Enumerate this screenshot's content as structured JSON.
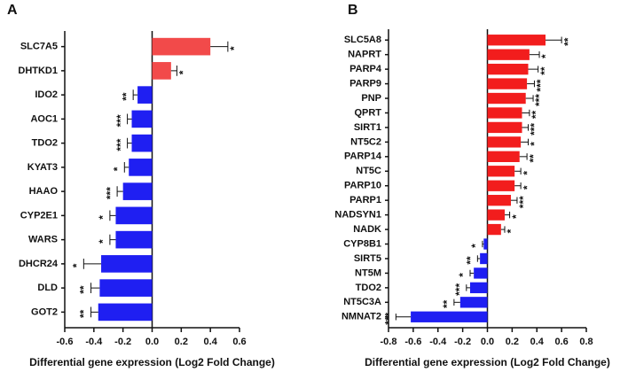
{
  "chart_data": [
    {
      "type": "hbar",
      "panel": "A",
      "categories": [
        "SLC7A5",
        "DHTKD1",
        "IDO2",
        "AOC1",
        "TDO2",
        "KYAT3",
        "HAAO",
        "CYP2E1",
        "WARS",
        "DHCR24",
        "DLD",
        "GOT2"
      ],
      "values": [
        0.4,
        0.13,
        -0.1,
        -0.14,
        -0.14,
        -0.16,
        -0.2,
        -0.25,
        -0.25,
        -0.35,
        -0.36,
        -0.37
      ],
      "errors": [
        0.12,
        0.04,
        0.03,
        0.03,
        0.03,
        0.03,
        0.04,
        0.04,
        0.04,
        0.12,
        0.06,
        0.05
      ],
      "annotations": [
        "*",
        "*",
        "**",
        "***",
        "***",
        "*",
        "***",
        "*",
        "*",
        "*",
        "**",
        "**"
      ],
      "positive_color": "#f24a4a",
      "negative_color": "#1f1ff2",
      "xlabel": "Differential gene expression (Log2 Fold Change)",
      "xlim": [
        -0.6,
        0.6
      ],
      "xticks": [
        -0.6,
        -0.4,
        -0.2,
        {
          "value": 0,
          "label": "0.0"
        },
        0.2,
        0.4,
        0.6
      ]
    },
    {
      "type": "hbar",
      "panel": "B",
      "categories": [
        "SLC5A8",
        "NAPRT",
        "PARP4",
        "PARP9",
        "PNP",
        "QPRT",
        "SIRT1",
        "NT5C2",
        "PARP14",
        "NT5C",
        "PARP10",
        "PARP1",
        "NADSYN1",
        "NADK",
        "CYP8B1",
        "SIRT5",
        "NT5M",
        "TDO2",
        "NT5C3A",
        "NMNAT2"
      ],
      "values": [
        0.47,
        0.34,
        0.33,
        0.32,
        0.31,
        0.28,
        0.28,
        0.27,
        0.26,
        0.22,
        0.22,
        0.19,
        0.14,
        0.11,
        -0.03,
        -0.06,
        -0.11,
        -0.14,
        -0.22,
        -0.62
      ],
      "errors": [
        0.13,
        0.08,
        0.08,
        0.06,
        0.06,
        0.06,
        0.05,
        0.06,
        0.06,
        0.05,
        0.05,
        0.05,
        0.04,
        0.03,
        0.01,
        0.02,
        0.03,
        0.03,
        0.05,
        0.12
      ],
      "annotations": [
        "**",
        "*",
        "**",
        "***",
        "***",
        "**",
        "***",
        "*",
        "**",
        "*",
        "*",
        "***",
        "*",
        "*",
        "*",
        "**",
        "*",
        "***",
        "**",
        "***"
      ],
      "positive_color": "#f21d1d",
      "negative_color": "#1f1ff2",
      "xlabel": "Differential gene expression (Log2 Fold Change)",
      "xlim": [
        -0.8,
        0.8
      ],
      "xticks": [
        -0.8,
        -0.6,
        -0.4,
        -0.2,
        {
          "value": 0,
          "label": "0.0"
        },
        0.2,
        0.4,
        0.6,
        0.8
      ]
    }
  ]
}
